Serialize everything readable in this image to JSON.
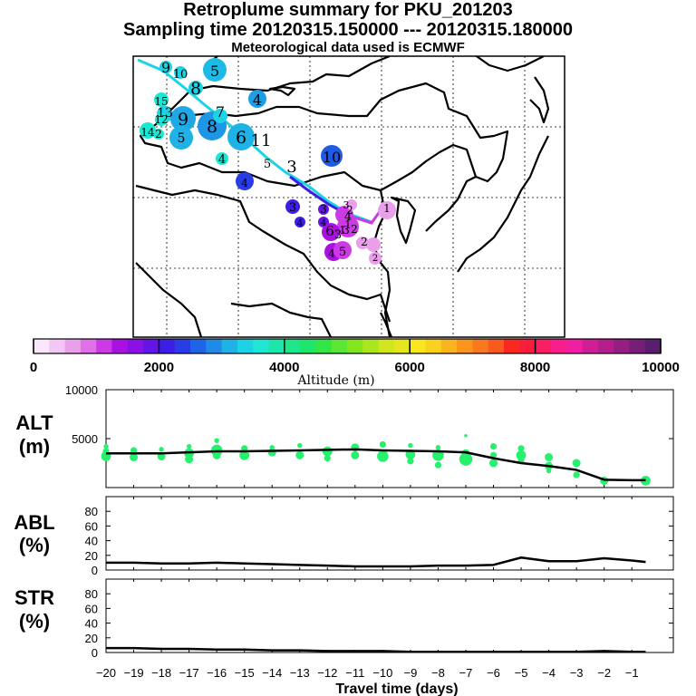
{
  "header": {
    "title": "Retroplume summary for PKU_201203",
    "sampling": "Sampling time   20120315.150000 --- 20120315.180000",
    "met": "Meteorological data used is ECMWF"
  },
  "map": {
    "plume_labels": [
      "9",
      "10",
      "5",
      "8",
      "4",
      "15",
      "13",
      "12",
      "14",
      "2",
      "9",
      "8",
      "7",
      "6",
      "11",
      "5",
      "4",
      "5",
      "3",
      "10",
      "4",
      "3",
      "4",
      "3",
      "4",
      "3",
      "4",
      "3",
      "2",
      "1",
      "2",
      "1",
      "6",
      "3",
      "2",
      "5",
      "4",
      "2",
      "1"
    ]
  },
  "colorbar": {
    "tick_labels": [
      "0",
      "2000",
      "4000",
      "6000",
      "8000",
      "10000"
    ],
    "label": "Altitude (m)",
    "colors": [
      "#fbe7fb",
      "#f3c6f3",
      "#ea9fea",
      "#e070e8",
      "#cc3ae6",
      "#aa10e0",
      "#8a10e6",
      "#6414e6",
      "#3c1ee6",
      "#2a3ce6",
      "#1e64e6",
      "#1e8ce6",
      "#1eb2e6",
      "#1ed2e6",
      "#1ee6d2",
      "#1ee6aa",
      "#1ee68a",
      "#1ee66a",
      "#32e646",
      "#5ae632",
      "#82e61e",
      "#aae61e",
      "#d2e61e",
      "#e6e61e",
      "#fae61e",
      "#fad21e",
      "#fab41e",
      "#fa961e",
      "#fa781e",
      "#fa5a1e",
      "#fa281e",
      "#fa1e3c",
      "#fa1e64",
      "#fa1e8c",
      "#f01ea0",
      "#d21e96",
      "#b41e8c",
      "#961e82",
      "#781e78",
      "#5a1e6e"
    ]
  },
  "chart_data": [
    {
      "type": "line",
      "panel": "ALT",
      "ylabel": "ALT (m)",
      "ylim": [
        0,
        10000
      ],
      "yticks": [
        "10000",
        "5000"
      ],
      "x": [
        -20,
        -19,
        -18,
        -17,
        -16,
        -15,
        -14,
        -13,
        -12,
        -11,
        -10,
        -9,
        -8,
        -7,
        -6,
        -5,
        -4,
        -3,
        -2,
        -1,
        -0.5
      ],
      "values": [
        3500,
        3500,
        3500,
        3600,
        3700,
        3700,
        3750,
        3800,
        3850,
        3900,
        3800,
        3750,
        3700,
        3600,
        3000,
        2500,
        2200,
        1800,
        800,
        750,
        750
      ],
      "scatter": [
        {
          "x": -20,
          "y": 3200,
          "s": 6
        },
        {
          "x": -20,
          "y": 3700,
          "s": 4
        },
        {
          "x": -20,
          "y": 4200,
          "s": 3
        },
        {
          "x": -19,
          "y": 3100,
          "s": 5
        },
        {
          "x": -19,
          "y": 3800,
          "s": 4
        },
        {
          "x": -18,
          "y": 3200,
          "s": 5
        },
        {
          "x": -18,
          "y": 3900,
          "s": 3
        },
        {
          "x": -17,
          "y": 2900,
          "s": 5
        },
        {
          "x": -17,
          "y": 3500,
          "s": 6
        },
        {
          "x": -17,
          "y": 4200,
          "s": 3
        },
        {
          "x": -16,
          "y": 3800,
          "s": 7
        },
        {
          "x": -16,
          "y": 3300,
          "s": 5
        },
        {
          "x": -16,
          "y": 4800,
          "s": 3
        },
        {
          "x": -15,
          "y": 3300,
          "s": 6
        },
        {
          "x": -15,
          "y": 4000,
          "s": 4
        },
        {
          "x": -14,
          "y": 3600,
          "s": 5
        },
        {
          "x": -14,
          "y": 4100,
          "s": 3
        },
        {
          "x": -13,
          "y": 3300,
          "s": 5
        },
        {
          "x": -13,
          "y": 4300,
          "s": 3
        },
        {
          "x": -12,
          "y": 3700,
          "s": 6
        },
        {
          "x": -12,
          "y": 3000,
          "s": 4
        },
        {
          "x": -11,
          "y": 3300,
          "s": 5
        },
        {
          "x": -11,
          "y": 4100,
          "s": 5
        },
        {
          "x": -10,
          "y": 3200,
          "s": 7
        },
        {
          "x": -10,
          "y": 4400,
          "s": 4
        },
        {
          "x": -9,
          "y": 2700,
          "s": 4
        },
        {
          "x": -9,
          "y": 3400,
          "s": 6
        },
        {
          "x": -9,
          "y": 4300,
          "s": 3
        },
        {
          "x": -8,
          "y": 3300,
          "s": 7
        },
        {
          "x": -8,
          "y": 2300,
          "s": 4
        },
        {
          "x": -8,
          "y": 4100,
          "s": 3
        },
        {
          "x": -7,
          "y": 2900,
          "s": 8
        },
        {
          "x": -7,
          "y": 3500,
          "s": 5
        },
        {
          "x": -7,
          "y": 5300,
          "s": 2
        },
        {
          "x": -6,
          "y": 2500,
          "s": 5
        },
        {
          "x": -6,
          "y": 3300,
          "s": 4
        },
        {
          "x": -6,
          "y": 4200,
          "s": 4
        },
        {
          "x": -5,
          "y": 3300,
          "s": 6
        },
        {
          "x": -5,
          "y": 4000,
          "s": 4
        },
        {
          "x": -5,
          "y": 2800,
          "s": 4
        },
        {
          "x": -4,
          "y": 2200,
          "s": 5
        },
        {
          "x": -4,
          "y": 3100,
          "s": 5
        },
        {
          "x": -4,
          "y": 1700,
          "s": 3
        },
        {
          "x": -3,
          "y": 1300,
          "s": 4
        },
        {
          "x": -3,
          "y": 2500,
          "s": 5
        },
        {
          "x": -2,
          "y": 700,
          "s": 5
        },
        {
          "x": -0.5,
          "y": 700,
          "s": 6
        }
      ]
    },
    {
      "type": "line",
      "panel": "ABL",
      "ylabel": "ABL (%)",
      "ylim": [
        0,
        100
      ],
      "yticks": [
        "80",
        "60",
        "40",
        "20",
        "0"
      ],
      "x": [
        -20,
        -19,
        -18,
        -17,
        -16,
        -15,
        -14,
        -13,
        -12,
        -11,
        -10,
        -9,
        -8,
        -7,
        -6,
        -5,
        -4,
        -3,
        -2,
        -1,
        -0.5
      ],
      "values": [
        10,
        10,
        9,
        9,
        10,
        9,
        8,
        7,
        6,
        5,
        5,
        5,
        6,
        6,
        7,
        17,
        12,
        12,
        16,
        13,
        11
      ]
    },
    {
      "type": "line",
      "panel": "STR",
      "ylabel": "STR (%)",
      "ylim": [
        0,
        100
      ],
      "yticks": [
        "80",
        "60",
        "40",
        "20",
        "0"
      ],
      "x": [
        -20,
        -19,
        -18,
        -17,
        -16,
        -15,
        -14,
        -13,
        -12,
        -11,
        -10,
        -9,
        -8,
        -7,
        -6,
        -5,
        -4,
        -3,
        -2,
        -1,
        -0.5
      ],
      "values": [
        6,
        6,
        5,
        5,
        4,
        4,
        3,
        3,
        2,
        2,
        2,
        1,
        1,
        1,
        1,
        1,
        1,
        1,
        2,
        1,
        1
      ]
    }
  ],
  "panels": {
    "alt_label": [
      "ALT",
      "(m)"
    ],
    "abl_label": [
      "ABL",
      "(%)"
    ],
    "str_label": [
      "STR",
      "(%)"
    ],
    "x_ticks": [
      "−20",
      "−19",
      "−18",
      "−17",
      "−16",
      "−15",
      "−14",
      "−13",
      "−12",
      "−11",
      "−10",
      "−9",
      "−8",
      "−7",
      "−6",
      "−5",
      "−4",
      "−3",
      "−2",
      "−1"
    ],
    "xlabel": "Travel time (days)"
  }
}
